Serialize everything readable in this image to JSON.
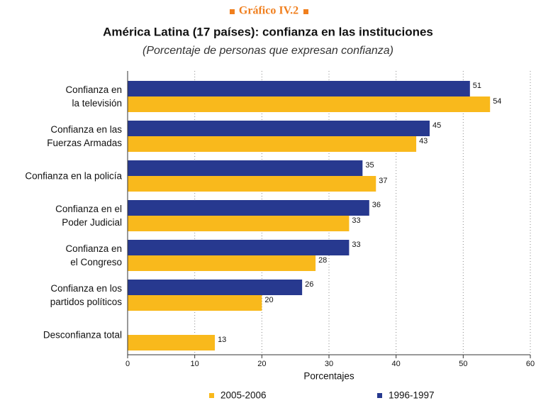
{
  "chart_data": {
    "type": "hbar",
    "kicker": "Gráfico IV.2",
    "title": "América Latina (17 países): confianza en las instituciones",
    "subtitle": "(Porcentaje de personas que expresan confianza)",
    "x_label": "Porcentajes",
    "categories": [
      "Confianza en\nla televisión",
      "Confianza en las\nFuerzas Armadas",
      "Confianza en la policía",
      "Confianza en el\nPoder Judicial",
      "Confianza en\nel Congreso",
      "Confianza en los\npartidos políticos",
      "Desconfianza total"
    ],
    "series": [
      {
        "name": "2005-2006",
        "color": "#f9b91c",
        "values": [
          54,
          43,
          37,
          33,
          28,
          20,
          13
        ]
      },
      {
        "name": "1996-1997",
        "color": "#27398f",
        "values": [
          51,
          45,
          35,
          36,
          33,
          26,
          null
        ]
      }
    ],
    "xlim": [
      0,
      60
    ],
    "xticks": [
      0,
      10,
      20,
      30,
      40,
      50,
      60
    ],
    "grid": true
  }
}
